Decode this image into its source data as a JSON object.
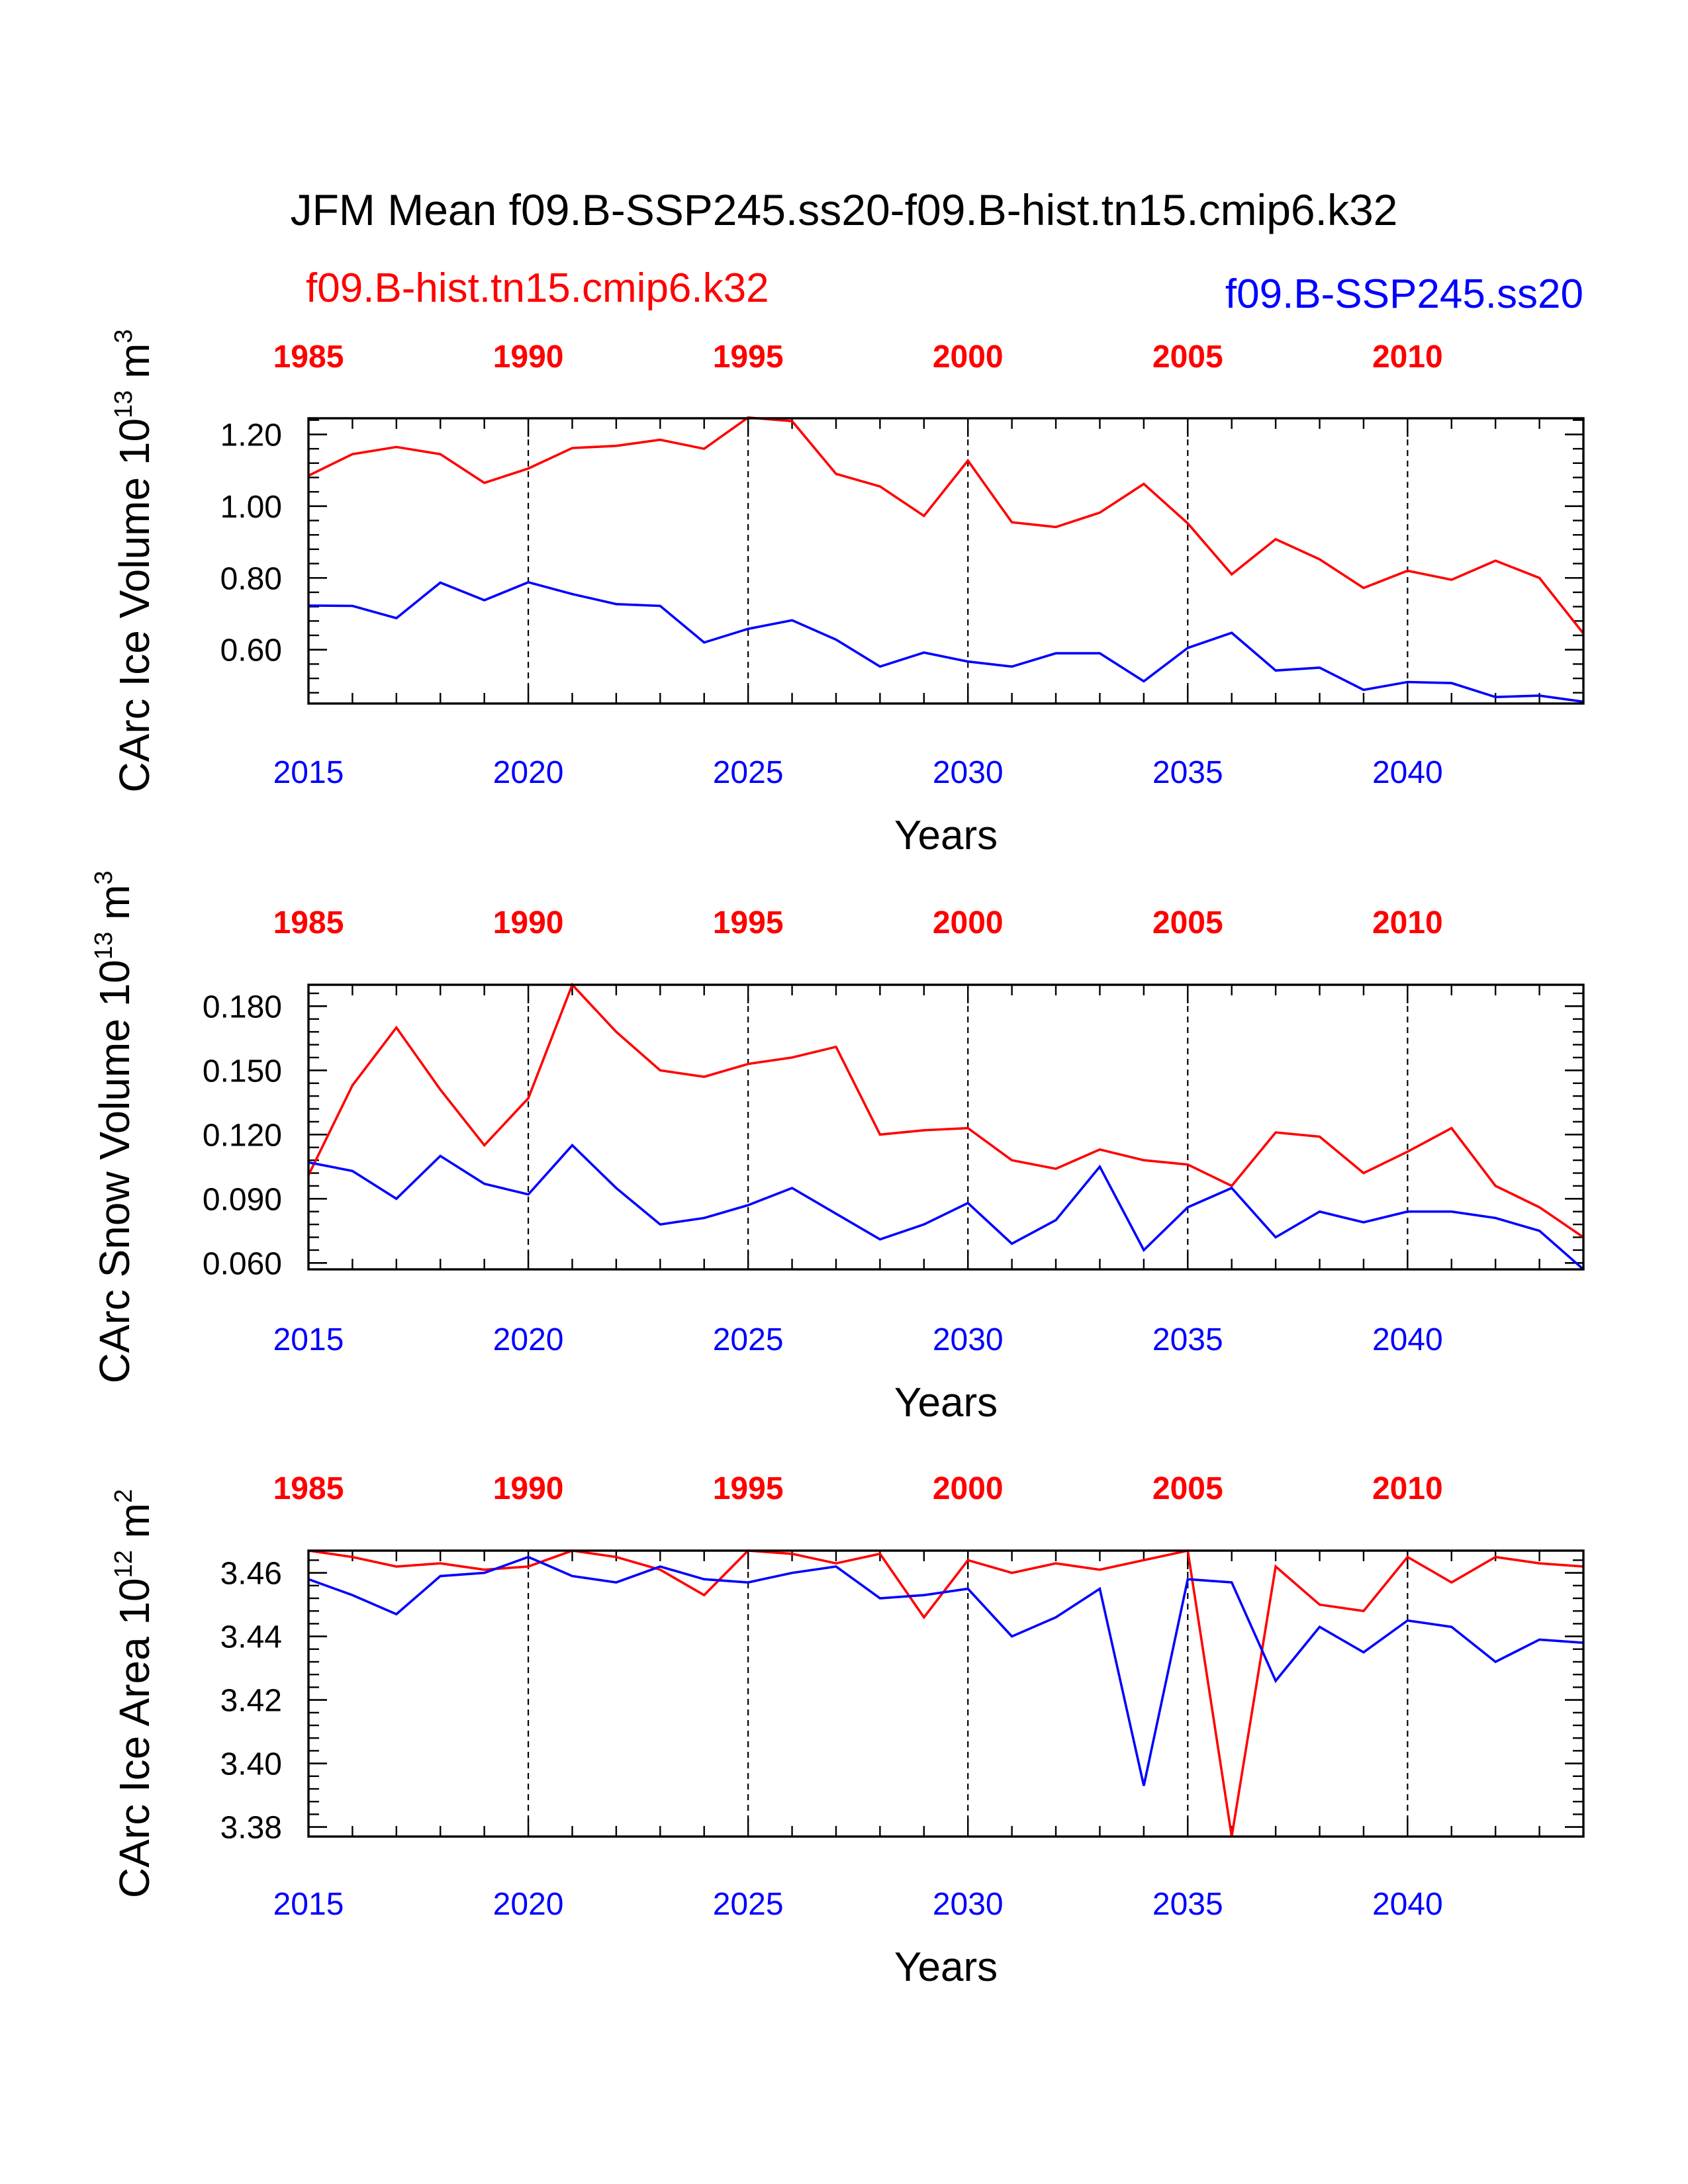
{
  "title": "JFM Mean f09.B-SSP245.ss20-f09.B-hist.tn15.cmip6.k32",
  "legend": {
    "red_label": "f09.B-hist.tn15.cmip6.k32",
    "blue_label": "f09.B-SSP245.ss20"
  },
  "colors": {
    "red": "#ff0000",
    "blue": "#0000ff",
    "axis": "#000000"
  },
  "chart_data": [
    {
      "type": "line",
      "ylabel": "CArc Ice Volume 10",
      "ylabel_exp": "13",
      "ylabel_unit": " m",
      "ylabel_unit_exp": "3",
      "xlabel": "Years",
      "ylim": [
        0.45,
        1.245
      ],
      "yticks": [
        0.6,
        0.8,
        1.0,
        1.2
      ],
      "ytick_labels": [
        "0.60",
        "0.80",
        "1.00",
        "1.20"
      ],
      "yminor_step": 0.04,
      "xlim": [
        2015,
        2044
      ],
      "bottom_ticks": [
        2015,
        2020,
        2025,
        2030,
        2035,
        2040
      ],
      "top_ticks": [
        1985,
        1990,
        1995,
        2000,
        2005,
        2010
      ],
      "top_offset": 30,
      "series": [
        {
          "name": "f09.B-hist.tn15.cmip6.k32",
          "color": "#ff0000",
          "x_start": 2015,
          "values": [
            1.085,
            1.145,
            1.165,
            1.145,
            1.065,
            1.105,
            1.162,
            1.168,
            1.185,
            1.16,
            1.247,
            1.237,
            1.09,
            1.055,
            0.973,
            1.127,
            0.955,
            0.942,
            0.982,
            1.062,
            0.952,
            0.81,
            0.908,
            0.852,
            0.772,
            0.82,
            0.795,
            0.848,
            0.8,
            0.645
          ]
        },
        {
          "name": "f09.B-SSP245.ss20",
          "color": "#0000ff",
          "x_start": 2015,
          "values": [
            0.723,
            0.722,
            0.688,
            0.787,
            0.738,
            0.788,
            0.755,
            0.727,
            0.722,
            0.62,
            0.658,
            0.682,
            0.628,
            0.553,
            0.592,
            0.567,
            0.553,
            0.59,
            0.59,
            0.512,
            0.605,
            0.647,
            0.542,
            0.55,
            0.488,
            0.51,
            0.507,
            0.468,
            0.472,
            0.455
          ]
        }
      ]
    },
    {
      "type": "line",
      "ylabel": "CArc Snow Volume 10",
      "ylabel_exp": "13",
      "ylabel_unit": " m",
      "ylabel_unit_exp": "3",
      "xlabel": "Years",
      "ylim": [
        0.057,
        0.19
      ],
      "yticks": [
        0.06,
        0.09,
        0.12,
        0.15,
        0.18
      ],
      "ytick_labels": [
        "0.060",
        "0.090",
        "0.120",
        "0.150",
        "0.180"
      ],
      "yminor_step": 0.006,
      "xlim": [
        2015,
        2044
      ],
      "bottom_ticks": [
        2015,
        2020,
        2025,
        2030,
        2035,
        2040
      ],
      "top_ticks": [
        1985,
        1990,
        1995,
        2000,
        2005,
        2010
      ],
      "top_offset": 30,
      "series": [
        {
          "name": "f09.B-hist.tn15.cmip6.k32",
          "color": "#ff0000",
          "x_start": 2015,
          "values": [
            0.101,
            0.143,
            0.17,
            0.141,
            0.115,
            0.137,
            0.19,
            0.168,
            0.15,
            0.147,
            0.153,
            0.156,
            0.161,
            0.12,
            0.122,
            0.123,
            0.108,
            0.104,
            0.113,
            0.108,
            0.106,
            0.096,
            0.121,
            0.119,
            0.102,
            0.112,
            0.123,
            0.096,
            0.086,
            0.072
          ]
        },
        {
          "name": "f09.B-SSP245.ss20",
          "color": "#0000ff",
          "x_start": 2015,
          "values": [
            0.107,
            0.103,
            0.09,
            0.11,
            0.097,
            0.092,
            0.115,
            0.095,
            0.078,
            0.081,
            0.087,
            0.095,
            0.083,
            0.071,
            0.078,
            0.088,
            0.069,
            0.08,
            0.105,
            0.066,
            0.086,
            0.095,
            0.072,
            0.084,
            0.079,
            0.084,
            0.084,
            0.081,
            0.075,
            0.057
          ]
        }
      ]
    },
    {
      "type": "line",
      "ylabel": "CArc Ice Area 10",
      "ylabel_exp": "12",
      "ylabel_unit": " m",
      "ylabel_unit_exp": "2",
      "xlabel": "Years",
      "ylim": [
        3.377,
        3.467
      ],
      "yticks": [
        3.38,
        3.4,
        3.42,
        3.44,
        3.46
      ],
      "ytick_labels": [
        "3.38",
        "3.40",
        "3.42",
        "3.44",
        "3.46"
      ],
      "yminor_step": 0.004,
      "xlim": [
        2015,
        2044
      ],
      "bottom_ticks": [
        2015,
        2020,
        2025,
        2030,
        2035,
        2040
      ],
      "top_ticks": [
        1985,
        1990,
        1995,
        2000,
        2005,
        2010
      ],
      "top_offset": 30,
      "series": [
        {
          "name": "f09.B-hist.tn15.cmip6.k32",
          "color": "#ff0000",
          "x_start": 2015,
          "values": [
            3.467,
            3.465,
            3.462,
            3.463,
            3.461,
            3.462,
            3.467,
            3.465,
            3.461,
            3.453,
            3.467,
            3.466,
            3.463,
            3.466,
            3.446,
            3.464,
            3.46,
            3.463,
            3.461,
            3.464,
            3.467,
            3.377,
            3.462,
            3.45,
            3.448,
            3.465,
            3.457,
            3.465,
            3.463,
            3.462
          ]
        },
        {
          "name": "f09.B-SSP245.ss20",
          "color": "#0000ff",
          "x_start": 2015,
          "values": [
            3.458,
            3.453,
            3.447,
            3.459,
            3.46,
            3.465,
            3.459,
            3.457,
            3.462,
            3.458,
            3.457,
            3.46,
            3.462,
            3.452,
            3.453,
            3.455,
            3.44,
            3.446,
            3.455,
            3.393,
            3.458,
            3.457,
            3.426,
            3.443,
            3.435,
            3.445,
            3.443,
            3.432,
            3.439,
            3.438
          ]
        }
      ]
    }
  ]
}
